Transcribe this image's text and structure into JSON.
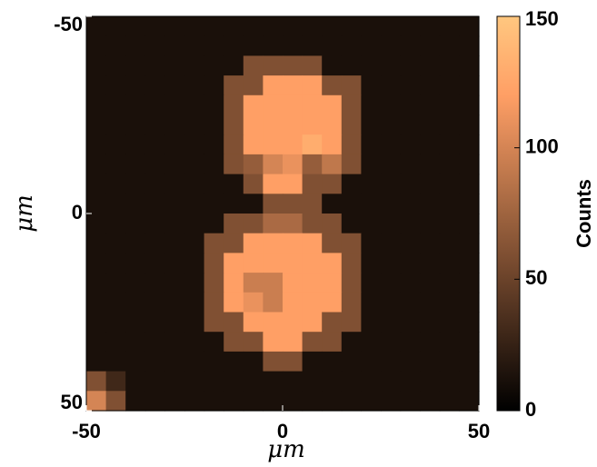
{
  "chart_data": {
    "type": "heatmap",
    "x": [
      -47.5,
      -42.5,
      -37.5,
      -32.5,
      -27.5,
      -22.5,
      -17.5,
      -12.5,
      -7.5,
      -2.5,
      2.5,
      7.5,
      12.5,
      17.5,
      22.5,
      27.5,
      32.5,
      37.5,
      42.5,
      47.5
    ],
    "y": [
      -47.5,
      -42.5,
      -37.5,
      -32.5,
      -27.5,
      -22.5,
      -17.5,
      -12.5,
      -7.5,
      -2.5,
      2.5,
      7.5,
      12.5,
      17.5,
      22.5,
      27.5,
      32.5,
      37.5,
      42.5,
      47.5
    ],
    "z": [
      [
        12,
        12,
        12,
        12,
        12,
        12,
        12,
        12,
        12,
        12,
        12,
        12,
        12,
        12,
        12,
        12,
        12,
        12,
        12,
        12
      ],
      [
        12,
        12,
        12,
        12,
        12,
        12,
        12,
        12,
        12,
        12,
        12,
        12,
        12,
        12,
        12,
        12,
        12,
        12,
        12,
        12
      ],
      [
        12,
        12,
        12,
        12,
        12,
        12,
        12,
        12,
        60,
        60,
        60,
        60,
        12,
        12,
        12,
        12,
        12,
        12,
        12,
        12
      ],
      [
        12,
        12,
        12,
        12,
        12,
        12,
        12,
        60,
        60,
        120,
        120,
        120,
        60,
        60,
        12,
        12,
        12,
        12,
        12,
        12
      ],
      [
        12,
        12,
        12,
        12,
        12,
        12,
        12,
        60,
        120,
        120,
        120,
        120,
        120,
        60,
        12,
        12,
        12,
        12,
        12,
        12
      ],
      [
        12,
        12,
        12,
        12,
        12,
        12,
        12,
        60,
        120,
        120,
        120,
        120,
        120,
        60,
        12,
        12,
        12,
        12,
        12,
        12
      ],
      [
        12,
        12,
        12,
        12,
        12,
        12,
        12,
        60,
        120,
        120,
        120,
        130,
        120,
        60,
        12,
        12,
        12,
        12,
        12,
        12
      ],
      [
        12,
        12,
        12,
        12,
        12,
        12,
        12,
        60,
        70,
        100,
        110,
        70,
        90,
        60,
        12,
        12,
        12,
        12,
        12,
        12
      ],
      [
        12,
        12,
        12,
        12,
        12,
        12,
        12,
        12,
        60,
        120,
        120,
        60,
        60,
        12,
        12,
        12,
        12,
        12,
        12,
        12
      ],
      [
        12,
        12,
        12,
        12,
        12,
        12,
        12,
        12,
        12,
        60,
        60,
        60,
        12,
        12,
        12,
        12,
        12,
        12,
        12,
        12
      ],
      [
        12,
        12,
        12,
        12,
        12,
        12,
        12,
        60,
        60,
        80,
        80,
        60,
        60,
        12,
        12,
        12,
        12,
        12,
        12,
        12
      ],
      [
        12,
        12,
        12,
        12,
        12,
        12,
        60,
        60,
        120,
        120,
        120,
        120,
        60,
        60,
        12,
        12,
        12,
        12,
        12,
        12
      ],
      [
        12,
        12,
        12,
        12,
        12,
        12,
        60,
        120,
        120,
        120,
        120,
        120,
        120,
        60,
        12,
        12,
        12,
        12,
        12,
        12
      ],
      [
        12,
        12,
        12,
        12,
        12,
        12,
        60,
        120,
        95,
        95,
        120,
        120,
        120,
        60,
        12,
        12,
        12,
        12,
        12,
        12
      ],
      [
        12,
        12,
        12,
        12,
        12,
        12,
        60,
        120,
        110,
        95,
        120,
        120,
        120,
        60,
        12,
        12,
        12,
        12,
        12,
        12
      ],
      [
        12,
        12,
        12,
        12,
        12,
        12,
        60,
        60,
        120,
        120,
        120,
        120,
        60,
        60,
        12,
        12,
        12,
        12,
        12,
        12
      ],
      [
        12,
        12,
        12,
        12,
        12,
        12,
        12,
        60,
        60,
        120,
        120,
        60,
        60,
        12,
        12,
        12,
        12,
        12,
        12,
        12
      ],
      [
        12,
        12,
        12,
        12,
        12,
        12,
        12,
        12,
        12,
        60,
        60,
        12,
        12,
        12,
        12,
        12,
        12,
        12,
        12,
        12
      ],
      [
        60,
        30,
        12,
        12,
        12,
        12,
        12,
        12,
        12,
        12,
        12,
        12,
        12,
        12,
        12,
        12,
        12,
        12,
        12,
        12
      ],
      [
        100,
        60,
        12,
        12,
        12,
        12,
        12,
        12,
        12,
        12,
        12,
        12,
        12,
        12,
        12,
        12,
        12,
        12,
        12,
        12
      ]
    ],
    "xlim": [
      -50,
      50
    ],
    "xticks": [
      -50,
      0,
      50
    ],
    "ylim": [
      -50,
      50
    ],
    "yticks": [
      -50,
      0,
      50
    ],
    "y_reversed": true,
    "xlabel": "μm",
    "ylabel": "μm",
    "colorbar": {
      "label": "Counts",
      "clim": [
        0,
        150
      ],
      "ticks": [
        0,
        50,
        100,
        150
      ],
      "colormap": "copper"
    }
  }
}
